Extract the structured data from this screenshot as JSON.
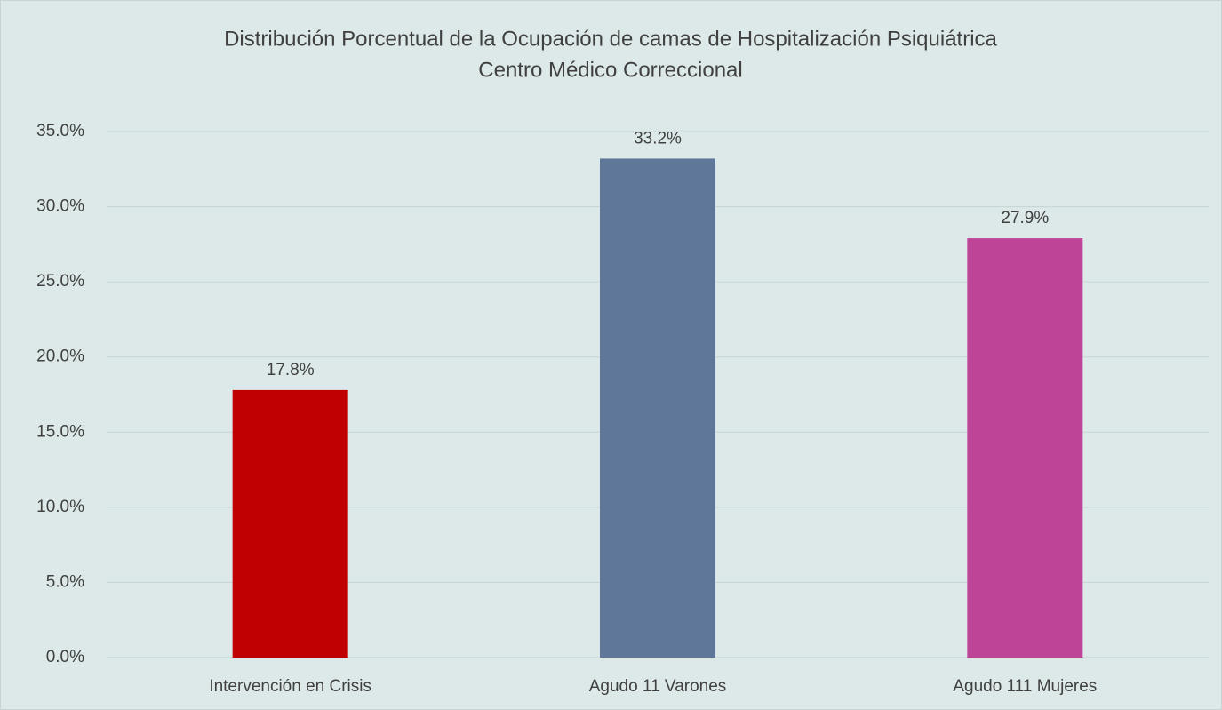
{
  "chart_data": {
    "type": "bar",
    "title": "Distribución Porcentual de la Ocupación de camas de Hospitalización Psiquiátrica",
    "subtitle": "Centro Médico Correccional",
    "categories": [
      "Intervención en Crisis",
      "Agudo 11 Varones",
      "Agudo 111 Mujeres"
    ],
    "values": [
      17.8,
      33.2,
      27.9
    ],
    "value_labels": [
      "17.8%",
      "33.2%",
      "27.9%"
    ],
    "colors": [
      "#c00000",
      "#5f7899",
      "#be4497"
    ],
    "ylim": [
      0,
      35
    ],
    "yticks": [
      {
        "value": 0,
        "label": "0.0%"
      },
      {
        "value": 5,
        "label": "5.0%"
      },
      {
        "value": 10,
        "label": "10.0%"
      },
      {
        "value": 15,
        "label": "15.0%"
      },
      {
        "value": 20,
        "label": "20.0%"
      },
      {
        "value": 25,
        "label": "25.0%"
      },
      {
        "value": 30,
        "label": "30.0%"
      },
      {
        "value": 35,
        "label": "35.0%"
      }
    ],
    "grid": true
  }
}
